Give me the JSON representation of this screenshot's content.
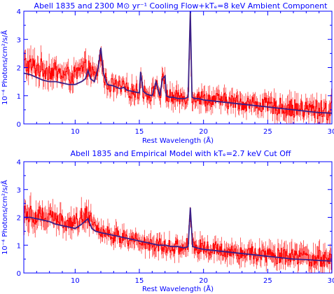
{
  "colors": {
    "axes": "#0000ff",
    "data": "#ff0000",
    "model": "#3b1f86"
  },
  "chart_data": [
    {
      "type": "line",
      "title": "Abell 1835 and 2300 M⊙ yr⁻¹ Cooling Flow+kTₑ=8 keV Ambient Component",
      "xlabel": "Rest Wavelength (Å)",
      "ylabel": "10⁻⁴ Photons/cm²/s/Å",
      "xlim": [
        6,
        30
      ],
      "ylim": [
        0,
        4
      ],
      "x_ticks": [
        10,
        15,
        20,
        25,
        30
      ],
      "y_ticks": [
        0,
        1,
        2,
        3,
        4
      ],
      "grid": false,
      "series": [
        {
          "role": "data",
          "style": "histogram-with-error-bars",
          "color": "#ff0000",
          "x": [
            6,
            7,
            8,
            9,
            10,
            10.5,
            11,
            11.5,
            12,
            13,
            14,
            15,
            16,
            17,
            18,
            18.9,
            19.5,
            20,
            21,
            22,
            23,
            24,
            25,
            26,
            27,
            28,
            29,
            30
          ],
          "y": [
            2.1,
            2.0,
            1.9,
            1.75,
            1.7,
            1.9,
            2.0,
            1.7,
            1.45,
            1.35,
            1.2,
            1.15,
            1.05,
            1.0,
            0.9,
            1.0,
            0.95,
            0.9,
            0.85,
            0.8,
            0.75,
            0.7,
            0.65,
            0.6,
            0.55,
            0.5,
            0.5,
            0.45
          ],
          "y_err": [
            0.45,
            0.4,
            0.4,
            0.35,
            0.35,
            0.35,
            0.35,
            0.3,
            0.3,
            0.3,
            0.3,
            0.3,
            0.3,
            0.3,
            0.3,
            0.3,
            0.3,
            0.3,
            0.3,
            0.3,
            0.3,
            0.3,
            0.3,
            0.35,
            0.35,
            0.35,
            0.4,
            0.4
          ]
        },
        {
          "role": "model",
          "style": "line",
          "color": "#3b1f86",
          "x": [
            6,
            6.5,
            7,
            7.5,
            8,
            8.5,
            9,
            9.5,
            10,
            10.5,
            10.8,
            11,
            11.2,
            11.5,
            11.8,
            12,
            12.2,
            12.5,
            13,
            13.5,
            13.8,
            14,
            14.5,
            15,
            15.1,
            15.3,
            15.6,
            16,
            16.3,
            16.6,
            16.8,
            17,
            17.1,
            17.3,
            17.6,
            18,
            18.5,
            18.8,
            18.97,
            19.1,
            19.3,
            19.6,
            20,
            21,
            22,
            23,
            24,
            25,
            26,
            27,
            28,
            29,
            30
          ],
          "y": [
            1.8,
            1.75,
            1.65,
            1.55,
            1.5,
            1.5,
            1.45,
            1.4,
            1.4,
            1.5,
            1.6,
            1.9,
            1.6,
            1.5,
            2.0,
            2.7,
            1.8,
            1.4,
            1.35,
            1.25,
            1.3,
            1.2,
            1.15,
            1.1,
            1.85,
            1.15,
            1.05,
            1.0,
            1.5,
            1.0,
            1.6,
            1.7,
            1.0,
            0.95,
            0.95,
            0.9,
            0.9,
            0.95,
            4.0,
            0.95,
            0.9,
            0.9,
            0.85,
            0.8,
            0.75,
            0.7,
            0.65,
            0.6,
            0.55,
            0.5,
            0.45,
            0.4,
            0.38
          ]
        }
      ]
    },
    {
      "type": "line",
      "title": "Abell 1835 and Empirical Model with kTₑ=2.7 keV Cut Off",
      "xlabel": "Rest Wavelength (Å)",
      "ylabel": "10⁻⁴ Photons/cm²/s/Å",
      "xlim": [
        6,
        30
      ],
      "ylim": [
        0,
        4
      ],
      "x_ticks": [
        10,
        15,
        20,
        25,
        30
      ],
      "y_ticks": [
        0,
        1,
        2,
        3,
        4
      ],
      "grid": false,
      "series": [
        {
          "role": "data",
          "style": "histogram-with-error-bars",
          "color": "#ff0000",
          "x": [
            6,
            7,
            8,
            9,
            10,
            10.5,
            11,
            11.5,
            12,
            13,
            14,
            15,
            16,
            17,
            18,
            18.9,
            19.5,
            20,
            21,
            22,
            23,
            24,
            25,
            26,
            27,
            28,
            29,
            30
          ],
          "y": [
            2.2,
            2.1,
            2.0,
            1.85,
            1.8,
            2.0,
            2.1,
            1.8,
            1.5,
            1.35,
            1.2,
            1.15,
            1.05,
            1.0,
            0.9,
            1.0,
            0.95,
            0.9,
            0.85,
            0.8,
            0.75,
            0.7,
            0.65,
            0.6,
            0.55,
            0.5,
            0.5,
            0.45
          ],
          "y_err": [
            0.45,
            0.4,
            0.4,
            0.35,
            0.35,
            0.4,
            0.4,
            0.3,
            0.3,
            0.3,
            0.3,
            0.3,
            0.3,
            0.3,
            0.3,
            0.3,
            0.3,
            0.3,
            0.3,
            0.3,
            0.3,
            0.3,
            0.3,
            0.35,
            0.35,
            0.35,
            0.4,
            0.4
          ]
        },
        {
          "role": "model",
          "style": "line",
          "color": "#3b1f86",
          "x": [
            6,
            6.5,
            7,
            7.5,
            8,
            8.5,
            9,
            9.5,
            10,
            10.5,
            11,
            11.3,
            11.6,
            12,
            12.5,
            13,
            13.5,
            14,
            14.5,
            15,
            15.5,
            16,
            16.5,
            17,
            17.5,
            18,
            18.5,
            18.8,
            18.97,
            19.15,
            19.5,
            20,
            21,
            22,
            23,
            24,
            25,
            26,
            27,
            28,
            29,
            30
          ],
          "y": [
            2.0,
            2.0,
            1.95,
            1.9,
            1.85,
            1.75,
            1.7,
            1.65,
            1.6,
            1.75,
            1.95,
            1.6,
            1.5,
            1.45,
            1.4,
            1.35,
            1.3,
            1.25,
            1.2,
            1.15,
            1.1,
            1.05,
            1.0,
            1.0,
            0.95,
            0.95,
            0.9,
            0.95,
            2.35,
            0.95,
            0.9,
            0.85,
            0.8,
            0.75,
            0.7,
            0.65,
            0.6,
            0.55,
            0.5,
            0.48,
            0.45,
            0.43
          ]
        }
      ]
    }
  ]
}
